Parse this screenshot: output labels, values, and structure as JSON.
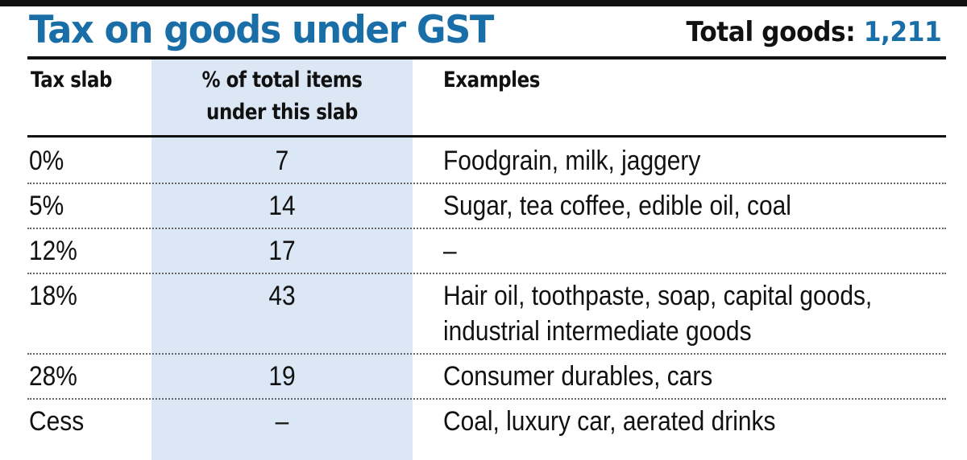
{
  "header": {
    "title": "Tax on goods under GST",
    "total_label": "Total goods:",
    "total_value": "1,211"
  },
  "colors": {
    "accent": "#1a6ea8",
    "column_band": "#dbe7f4",
    "text": "#111111"
  },
  "chart_data": {
    "type": "table",
    "columns": [
      "Tax slab",
      "% of total items under this slab",
      "Examples"
    ],
    "column_lines": {
      "pct": [
        "% of total items",
        "under this slab"
      ]
    },
    "rows": [
      {
        "slab": "0%",
        "pct": "7",
        "examples": [
          "Foodgrain, milk, jaggery"
        ]
      },
      {
        "slab": "5%",
        "pct": "14",
        "examples": [
          "Sugar, tea coffee, edible oil, coal"
        ]
      },
      {
        "slab": "12%",
        "pct": "17",
        "examples": [
          "–"
        ]
      },
      {
        "slab": "18%",
        "pct": "43",
        "examples": [
          "Hair oil, toothpaste, soap, capital goods,",
          "industrial intermediate goods"
        ]
      },
      {
        "slab": "28%",
        "pct": "19",
        "examples": [
          "Consumer durables, cars"
        ]
      },
      {
        "slab": "Cess",
        "pct": "–",
        "examples": [
          "Coal, luxury car, aerated drinks"
        ]
      }
    ]
  }
}
